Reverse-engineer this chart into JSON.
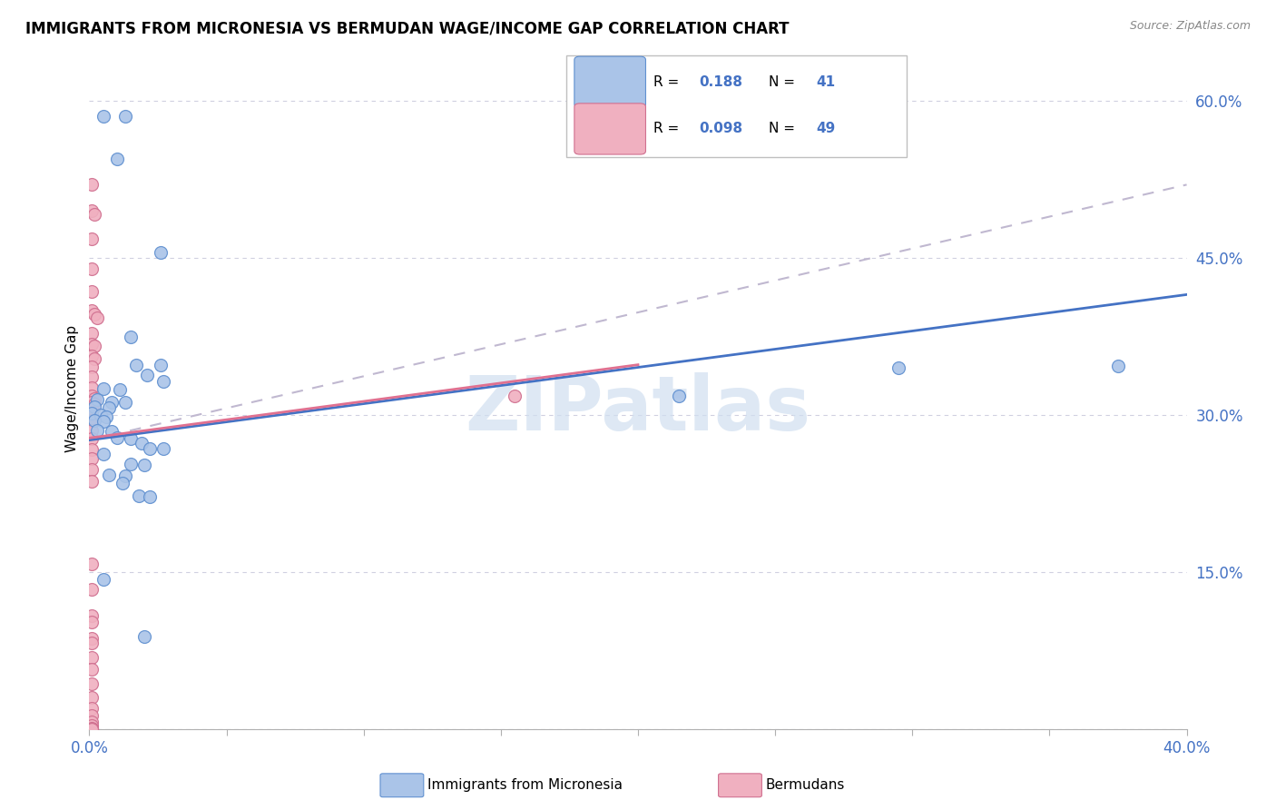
{
  "title": "IMMIGRANTS FROM MICRONESIA VS BERMUDAN WAGE/INCOME GAP CORRELATION CHART",
  "source": "Source: ZipAtlas.com",
  "ylabel": "Wage/Income Gap",
  "x_min": 0.0,
  "x_max": 0.4,
  "y_min": 0.0,
  "y_max": 0.65,
  "blue_color": "#aac4e8",
  "pink_color": "#f0b0c0",
  "blue_edge_color": "#6090d0",
  "pink_edge_color": "#d07090",
  "blue_line_color": "#4472c4",
  "pink_line_color": "#e07090",
  "dashed_line_color": "#c0b8d0",
  "watermark": "ZIPatlas",
  "watermark_color": "#d0dff0",
  "blue_scatter": [
    [
      0.005,
      0.585
    ],
    [
      0.013,
      0.585
    ],
    [
      0.01,
      0.545
    ],
    [
      0.026,
      0.455
    ],
    [
      0.015,
      0.375
    ],
    [
      0.017,
      0.348
    ],
    [
      0.026,
      0.348
    ],
    [
      0.021,
      0.338
    ],
    [
      0.027,
      0.332
    ],
    [
      0.005,
      0.325
    ],
    [
      0.011,
      0.324
    ],
    [
      0.003,
      0.315
    ],
    [
      0.008,
      0.312
    ],
    [
      0.013,
      0.312
    ],
    [
      0.002,
      0.308
    ],
    [
      0.007,
      0.307
    ],
    [
      0.001,
      0.302
    ],
    [
      0.004,
      0.3
    ],
    [
      0.006,
      0.298
    ],
    [
      0.002,
      0.295
    ],
    [
      0.005,
      0.294
    ],
    [
      0.003,
      0.285
    ],
    [
      0.008,
      0.284
    ],
    [
      0.01,
      0.278
    ],
    [
      0.015,
      0.277
    ],
    [
      0.019,
      0.273
    ],
    [
      0.022,
      0.268
    ],
    [
      0.027,
      0.268
    ],
    [
      0.005,
      0.263
    ],
    [
      0.015,
      0.253
    ],
    [
      0.02,
      0.252
    ],
    [
      0.007,
      0.243
    ],
    [
      0.013,
      0.242
    ],
    [
      0.012,
      0.235
    ],
    [
      0.018,
      0.223
    ],
    [
      0.022,
      0.222
    ],
    [
      0.005,
      0.143
    ],
    [
      0.02,
      0.088
    ],
    [
      0.295,
      0.345
    ],
    [
      0.215,
      0.318
    ],
    [
      0.375,
      0.347
    ]
  ],
  "pink_scatter": [
    [
      0.001,
      0.52
    ],
    [
      0.001,
      0.495
    ],
    [
      0.002,
      0.492
    ],
    [
      0.001,
      0.468
    ],
    [
      0.001,
      0.44
    ],
    [
      0.001,
      0.418
    ],
    [
      0.001,
      0.4
    ],
    [
      0.002,
      0.396
    ],
    [
      0.003,
      0.393
    ],
    [
      0.001,
      0.378
    ],
    [
      0.001,
      0.368
    ],
    [
      0.002,
      0.366
    ],
    [
      0.001,
      0.356
    ],
    [
      0.002,
      0.354
    ],
    [
      0.001,
      0.346
    ],
    [
      0.001,
      0.336
    ],
    [
      0.001,
      0.326
    ],
    [
      0.001,
      0.318
    ],
    [
      0.002,
      0.316
    ],
    [
      0.001,
      0.312
    ],
    [
      0.002,
      0.31
    ],
    [
      0.001,
      0.306
    ],
    [
      0.001,
      0.3
    ],
    [
      0.001,
      0.295
    ],
    [
      0.001,
      0.285
    ],
    [
      0.001,
      0.277
    ],
    [
      0.001,
      0.267
    ],
    [
      0.001,
      0.258
    ],
    [
      0.001,
      0.248
    ],
    [
      0.001,
      0.237
    ],
    [
      0.155,
      0.318
    ],
    [
      0.001,
      0.158
    ],
    [
      0.001,
      0.133
    ],
    [
      0.001,
      0.108
    ],
    [
      0.001,
      0.102
    ],
    [
      0.001,
      0.087
    ],
    [
      0.001,
      0.082
    ],
    [
      0.001,
      0.068
    ],
    [
      0.001,
      0.057
    ],
    [
      0.001,
      0.043
    ],
    [
      0.001,
      0.03
    ],
    [
      0.001,
      0.02
    ],
    [
      0.001,
      0.013
    ],
    [
      0.001,
      0.007
    ],
    [
      0.001,
      0.003
    ],
    [
      0.001,
      0.001
    ],
    [
      0.001,
      0.0
    ],
    [
      0.001,
      0.0
    ],
    [
      0.001,
      0.0
    ],
    [
      0.001,
      0.0
    ]
  ],
  "blue_line_x": [
    0.0,
    0.4
  ],
  "blue_line_y": [
    0.276,
    0.415
  ],
  "pink_line_x": [
    0.0,
    0.2
  ],
  "pink_line_y": [
    0.278,
    0.348
  ],
  "dashed_line_x": [
    0.0,
    0.4
  ],
  "dashed_line_y": [
    0.276,
    0.52
  ]
}
